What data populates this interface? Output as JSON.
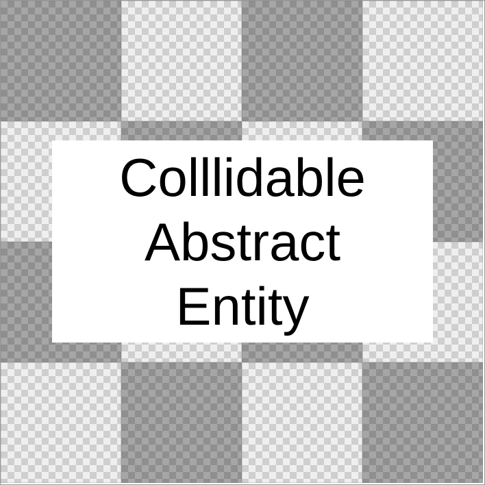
{
  "label": {
    "lines": [
      "Colllidable",
      "Abstract",
      "Entity"
    ]
  },
  "background": {
    "pattern": "checkerboard",
    "tile_shades": [
      [
        "dark",
        "light",
        "dark",
        "light"
      ],
      [
        "light",
        "dark",
        "light",
        "dark"
      ],
      [
        "dark",
        "light",
        "dark",
        "light"
      ],
      [
        "light",
        "dark",
        "light",
        "dark"
      ]
    ],
    "colors": {
      "dark": "#a6a6a6",
      "light": "#efefef",
      "label_bg": "#ffffff",
      "text": "#000000"
    }
  }
}
